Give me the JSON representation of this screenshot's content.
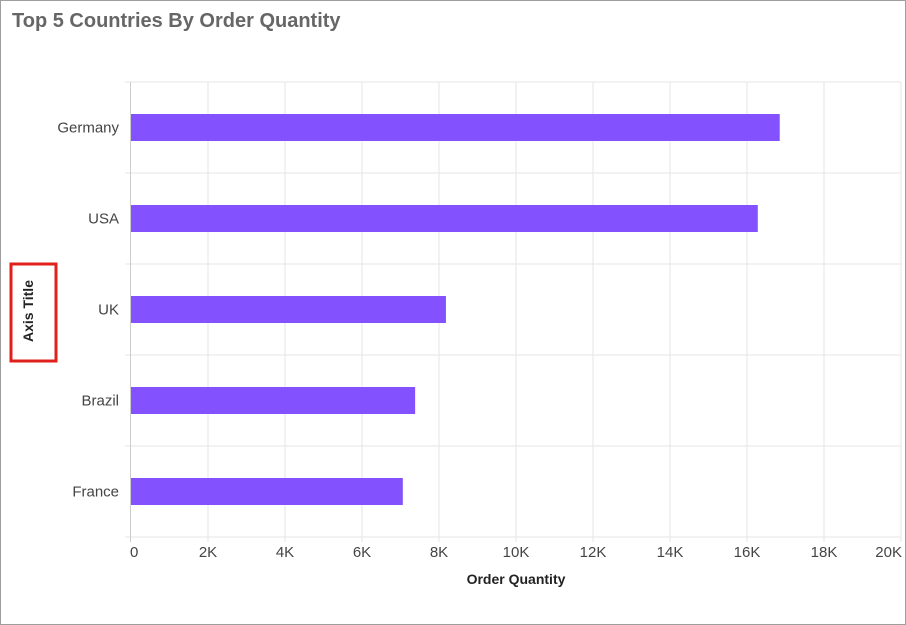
{
  "chart_data": {
    "type": "bar",
    "orientation": "horizontal",
    "title": "Top 5 Countries By Order Quantity",
    "xlabel": "Order Quantity",
    "ylabel": "Axis Title",
    "categories": [
      "Germany",
      "USA",
      "UK",
      "Brazil",
      "France"
    ],
    "values": [
      16850,
      16280,
      8180,
      7380,
      7060
    ],
    "xlim": [
      0,
      20000
    ],
    "x_ticks": [
      0,
      2000,
      4000,
      6000,
      8000,
      10000,
      12000,
      14000,
      16000,
      18000,
      20000
    ],
    "x_tick_labels": [
      "0",
      "2K",
      "4K",
      "6K",
      "8K",
      "10K",
      "12K",
      "14K",
      "16K",
      "18K",
      "20K"
    ],
    "grid": true,
    "legend": "none",
    "bar_color": "#8351fd",
    "ylabel_highlight_color": "#e0201a"
  }
}
